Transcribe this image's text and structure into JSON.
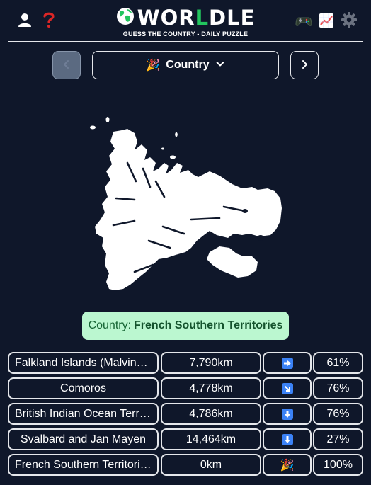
{
  "app": {
    "title_prefix": "WOR",
    "title_accent": "L",
    "title_suffix": "DLE",
    "subtitle": "GUESS THE COUNTRY - DAILY PUZZLE"
  },
  "icons": {
    "user": "user-icon",
    "help": "question-icon",
    "globe": "globe-icon",
    "games": "gamepad-icon",
    "stats": "chart-icon",
    "settings": "gear-icon"
  },
  "colors": {
    "background": "#0f172a",
    "accent_green": "#22c55e",
    "help_red": "#dc2626",
    "answer_bg": "#bbf7d0",
    "arrow_blue": "#3b82f6"
  },
  "selector": {
    "emoji": "🎉",
    "label": "Country"
  },
  "answer": {
    "label": "Country:",
    "value": "French Southern Territories"
  },
  "guesses": [
    {
      "name": "Falkland Islands (Malvinas)",
      "distance": "7,790km",
      "direction": "east",
      "percent": "61%"
    },
    {
      "name": "Comoros",
      "distance": "4,778km",
      "direction": "south-east",
      "percent": "76%"
    },
    {
      "name": "British Indian Ocean Territory",
      "distance": "4,786km",
      "direction": "south",
      "percent": "76%"
    },
    {
      "name": "Svalbard and Jan Mayen",
      "distance": "14,464km",
      "direction": "south",
      "percent": "27%"
    },
    {
      "name": "French Southern Territories",
      "distance": "0km",
      "direction": "correct",
      "direction_emoji": "🎉",
      "percent": "100%"
    }
  ]
}
